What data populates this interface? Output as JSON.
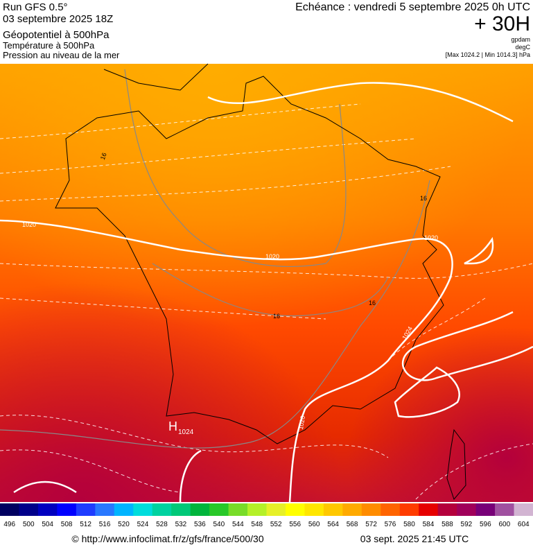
{
  "header": {
    "run": "Run GFS 0.5°",
    "run_date": "03 septembre 2025 18Z",
    "field": "Géopotentiel à 500hPa",
    "field2": "Température à 500hPa",
    "field3": "Pression au niveau de la mer",
    "echeance": "Echéance : vendredi 5 septembre 2025 0h UTC",
    "lead": "+ 30H",
    "unit1": "gpdam",
    "unit2": "degC",
    "range": "[Max 1024.2 | Min 1014.3] hPa"
  },
  "map": {
    "isobar_labels": [
      "1020",
      "1020",
      "1020",
      "1024",
      "1020"
    ],
    "isotherm_labels": [
      "16",
      "16",
      "16",
      "16"
    ],
    "high": {
      "symbol": "H",
      "value": "1024"
    }
  },
  "scale": {
    "values": [
      496,
      500,
      504,
      508,
      512,
      516,
      520,
      524,
      528,
      532,
      536,
      540,
      544,
      548,
      552,
      556,
      560,
      564,
      568,
      572,
      576,
      580,
      584,
      588,
      592,
      596,
      600,
      604
    ],
    "colors": [
      "#000060",
      "#00008a",
      "#0000c0",
      "#0000ff",
      "#1e3cff",
      "#2878ff",
      "#00b4ff",
      "#00dcdc",
      "#00d2a0",
      "#00c878",
      "#00b43c",
      "#28c828",
      "#78dc28",
      "#b4f028",
      "#e6f028",
      "#ffff00",
      "#ffe600",
      "#ffc800",
      "#ffaa00",
      "#ff8c00",
      "#ff6400",
      "#ff3c00",
      "#e60000",
      "#b4003c",
      "#a0005a",
      "#780078",
      "#a050a0",
      "#d2b4d2"
    ]
  },
  "footer": {
    "url": "© http://www.infoclimat.fr/z/gfs/france/500/30",
    "timestamp": "03 sept. 2025 21:45 UTC"
  }
}
